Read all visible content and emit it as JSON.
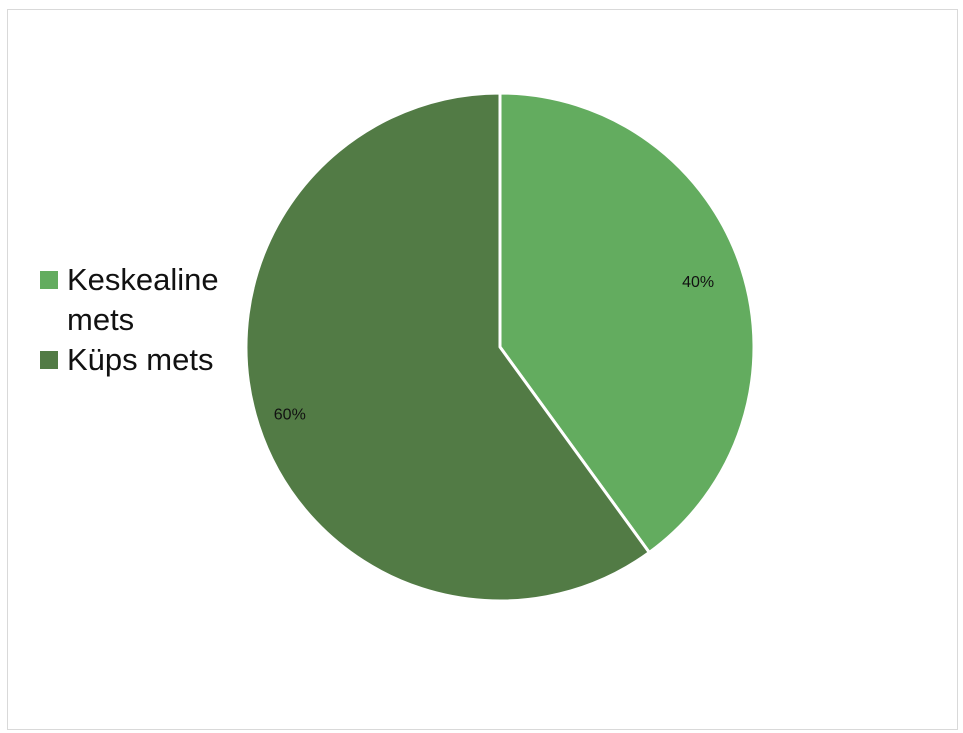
{
  "chart_data": {
    "type": "pie",
    "title": "",
    "categories": [
      "Keskealine mets",
      "Küps mets"
    ],
    "values": [
      40,
      60
    ],
    "data_labels": [
      "40%",
      "60%"
    ],
    "colors": [
      "#63ac5f",
      "#527b45"
    ],
    "legend_position": "left"
  }
}
